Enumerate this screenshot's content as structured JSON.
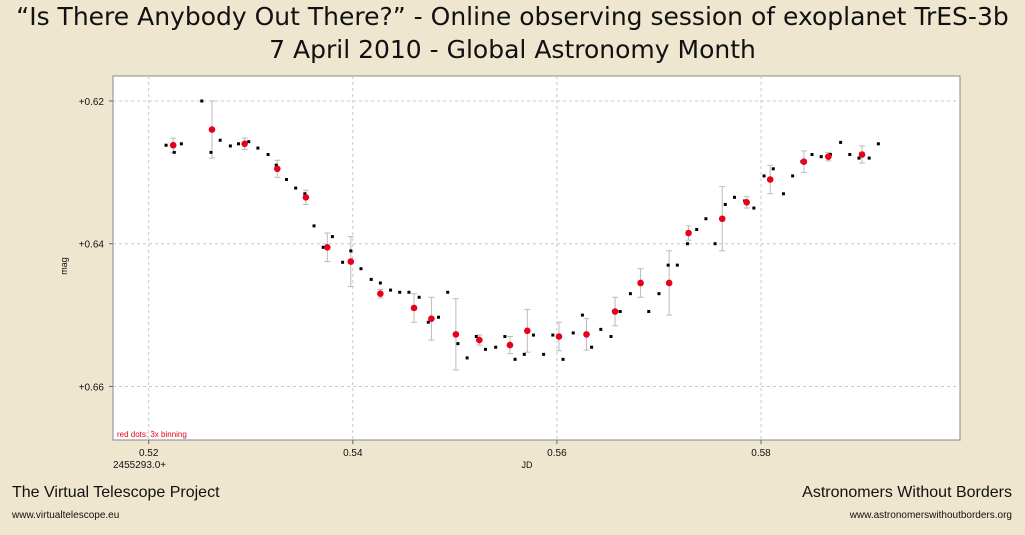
{
  "header": {
    "title_line1": "“Is There Anybody Out There?” - Online observing session of exoplanet TrES-3b",
    "title_line2": "7 April 2010 - Global Astronomy Month"
  },
  "footer": {
    "left_name": "The Virtual Telescope Project",
    "left_url": "www.virtualtelescope.eu",
    "right_name": "Astronomers Without Borders",
    "right_url": "www.astronomerswithoutborders.org"
  },
  "chart_data": {
    "type": "scatter",
    "xlabel": "JD",
    "ylabel": "mag",
    "x_offset_label": "2455293.0+",
    "xlim": [
      0.5165,
      0.5995
    ],
    "ylim": [
      0.6165,
      0.6675
    ],
    "y_inverted": true,
    "x_ticks": [
      "0.52",
      "0.54",
      "0.56",
      "0.58"
    ],
    "x_tick_values": [
      0.52,
      0.54,
      0.56,
      0.58
    ],
    "y_ticks": [
      "+0.62",
      "+0.64",
      "+0.66"
    ],
    "y_tick_values": [
      0.62,
      0.64,
      0.66
    ],
    "grid": true,
    "annotation": "red dots: 3x binning",
    "colors": {
      "raw": "#000000",
      "binned": "#e8001c",
      "errorbar": "#bbbbbb",
      "annotation": "#e8001c"
    },
    "series": [
      {
        "name": "",
        "style": "raw",
        "points": [
          [
            0.5217,
            0.6262
          ],
          [
            0.5225,
            0.6272
          ],
          [
            0.5232,
            0.626
          ],
          [
            0.5252,
            0.62
          ],
          [
            0.5261,
            0.6272
          ],
          [
            0.527,
            0.6255
          ],
          [
            0.528,
            0.6263
          ],
          [
            0.5288,
            0.626
          ],
          [
            0.5298,
            0.6257
          ],
          [
            0.5307,
            0.6266
          ],
          [
            0.5317,
            0.6275
          ],
          [
            0.5325,
            0.629
          ],
          [
            0.5335,
            0.631
          ],
          [
            0.5344,
            0.6322
          ],
          [
            0.5353,
            0.633
          ],
          [
            0.5362,
            0.6375
          ],
          [
            0.5371,
            0.6405
          ],
          [
            0.538,
            0.639
          ],
          [
            0.539,
            0.6426
          ],
          [
            0.5398,
            0.641
          ],
          [
            0.5408,
            0.6435
          ],
          [
            0.5418,
            0.645
          ],
          [
            0.5427,
            0.6455
          ],
          [
            0.5437,
            0.6465
          ],
          [
            0.5446,
            0.6468
          ],
          [
            0.5455,
            0.6468
          ],
          [
            0.5465,
            0.6475
          ],
          [
            0.5474,
            0.651
          ],
          [
            0.5484,
            0.6503
          ],
          [
            0.5493,
            0.6468
          ],
          [
            0.5503,
            0.654
          ],
          [
            0.5512,
            0.656
          ],
          [
            0.5521,
            0.653
          ],
          [
            0.553,
            0.6548
          ],
          [
            0.554,
            0.6545
          ],
          [
            0.5549,
            0.653
          ],
          [
            0.5559,
            0.6562
          ],
          [
            0.5568,
            0.6555
          ],
          [
            0.5577,
            0.6528
          ],
          [
            0.5587,
            0.6555
          ],
          [
            0.5596,
            0.6528
          ],
          [
            0.5606,
            0.6562
          ],
          [
            0.5616,
            0.6525
          ],
          [
            0.5625,
            0.65
          ],
          [
            0.5634,
            0.6545
          ],
          [
            0.5643,
            0.652
          ],
          [
            0.5653,
            0.653
          ],
          [
            0.5662,
            0.6495
          ],
          [
            0.5672,
            0.647
          ],
          [
            0.5681,
            0.6455
          ],
          [
            0.569,
            0.6495
          ],
          [
            0.57,
            0.647
          ],
          [
            0.5709,
            0.643
          ],
          [
            0.5718,
            0.643
          ],
          [
            0.5728,
            0.64
          ],
          [
            0.5737,
            0.638
          ],
          [
            0.5746,
            0.6365
          ],
          [
            0.5755,
            0.64
          ],
          [
            0.5765,
            0.6345
          ],
          [
            0.5774,
            0.6335
          ],
          [
            0.5784,
            0.634
          ],
          [
            0.5793,
            0.635
          ],
          [
            0.5803,
            0.6305
          ],
          [
            0.5812,
            0.6295
          ],
          [
            0.5822,
            0.633
          ],
          [
            0.5831,
            0.6305
          ],
          [
            0.584,
            0.6285
          ],
          [
            0.585,
            0.6275
          ],
          [
            0.5859,
            0.6278
          ],
          [
            0.5868,
            0.6275
          ],
          [
            0.5878,
            0.6258
          ],
          [
            0.5887,
            0.6275
          ],
          [
            0.5896,
            0.628
          ],
          [
            0.5906,
            0.628
          ],
          [
            0.5915,
            0.626
          ]
        ]
      },
      {
        "name": "",
        "style": "binned",
        "points": [
          [
            0.5224,
            0.6262,
            0.001
          ],
          [
            0.5262,
            0.624,
            0.004
          ],
          [
            0.5294,
            0.626,
            0.0008
          ],
          [
            0.5326,
            0.6295,
            0.0012
          ],
          [
            0.5354,
            0.6335,
            0.001
          ],
          [
            0.5375,
            0.6405,
            0.002
          ],
          [
            0.5398,
            0.6425,
            0.0035
          ],
          [
            0.5427,
            0.647,
            0.0006
          ],
          [
            0.546,
            0.649,
            0.002
          ],
          [
            0.5477,
            0.6505,
            0.003
          ],
          [
            0.5501,
            0.6527,
            0.005
          ],
          [
            0.5524,
            0.6535,
            0.0007
          ],
          [
            0.5554,
            0.6542,
            0.0012
          ],
          [
            0.5571,
            0.6522,
            0.003
          ],
          [
            0.5602,
            0.653,
            0.002
          ],
          [
            0.5629,
            0.6527,
            0.0022
          ],
          [
            0.5657,
            0.6495,
            0.002
          ],
          [
            0.5682,
            0.6455,
            0.002
          ],
          [
            0.571,
            0.6455,
            0.0045
          ],
          [
            0.5729,
            0.6385,
            0.001
          ],
          [
            0.5762,
            0.6365,
            0.0045
          ],
          [
            0.5786,
            0.6342,
            0.0008
          ],
          [
            0.5809,
            0.631,
            0.002
          ],
          [
            0.5842,
            0.6285,
            0.0015
          ],
          [
            0.5866,
            0.6278,
            0.0006
          ],
          [
            0.5899,
            0.6275,
            0.0012
          ]
        ]
      }
    ]
  }
}
